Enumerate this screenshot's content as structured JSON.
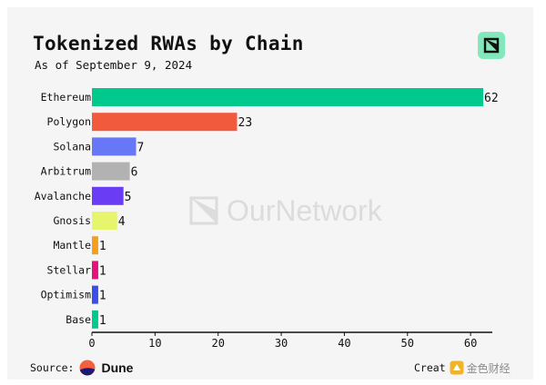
{
  "header": {
    "title": "Tokenized RWAs by Chain",
    "subtitle": "As of September 9, 2024"
  },
  "watermark": {
    "text": "OurNetwork"
  },
  "footer": {
    "source_label": "Source:",
    "source_name": "Dune",
    "created_label": "Creat",
    "jinse_text": "金色财经"
  },
  "colors": {
    "card_bg": "#f5f5f5",
    "logo_bg": "#84e8bd",
    "axis": "#111111"
  },
  "icons": {
    "brand": "ournetwork-logo-icon",
    "source": "dune-logo-icon",
    "watermark": "jinse-logo-icon"
  },
  "chart_data": {
    "type": "bar",
    "orientation": "horizontal",
    "title": "Tokenized RWAs by Chain",
    "subtitle": "As of September 9, 2024",
    "categories": [
      "Ethereum",
      "Polygon",
      "Solana",
      "Arbitrum",
      "Avalanche",
      "Gnosis",
      "Mantle",
      "Stellar",
      "Optimism",
      "Base"
    ],
    "values": [
      62,
      23,
      7,
      6,
      5,
      4,
      1,
      1,
      1,
      1
    ],
    "bar_colors": [
      "#00c98d",
      "#f25a3e",
      "#6877f7",
      "#b2b2b2",
      "#6a3df5",
      "#e6f56b",
      "#f3a01e",
      "#e6127c",
      "#3a4ee8",
      "#00c98d"
    ],
    "xlim": [
      0,
      62
    ],
    "xticks": [
      0,
      10,
      20,
      30,
      40,
      50,
      60
    ],
    "grid": false,
    "data_labels": true
  }
}
